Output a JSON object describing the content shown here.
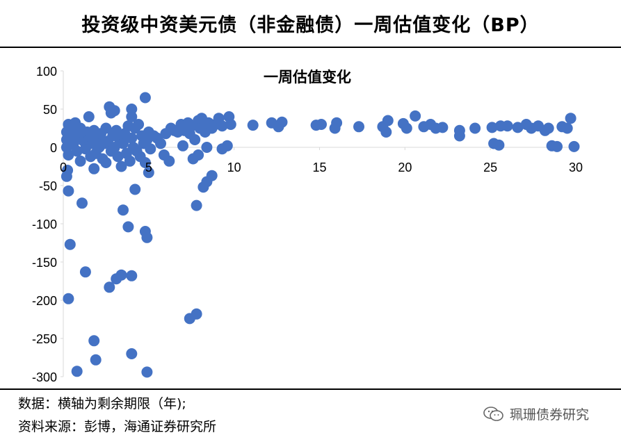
{
  "header": {
    "title": "投资级中资美元债（非金融债）一周估值变化（BP）"
  },
  "footer": {
    "data_note": "数据：横轴为剩余期限（年);",
    "source_note": "资料来源：彭博，海通证券研究所",
    "watermark": "珮珊债券研究",
    "watermark_icon": "wechat-icon"
  },
  "colors": {
    "marker": "#4472C4",
    "axis": "#d9d9d9",
    "text": "#000000"
  },
  "chart_data": {
    "type": "scatter",
    "title": "一周估值变化",
    "xlabel": "",
    "ylabel": "",
    "xlim": [
      0,
      30
    ],
    "ylim": [
      -300,
      100
    ],
    "xticks": [
      0,
      5,
      10,
      15,
      20,
      25,
      30
    ],
    "yticks": [
      100,
      50,
      0,
      -50,
      -100,
      -150,
      -200,
      -250,
      -300
    ],
    "grid": false,
    "legend": "none",
    "series": [
      {
        "points": [
          [
            0.2,
            -38
          ],
          [
            0.25,
            -30
          ],
          [
            0.3,
            -57
          ],
          [
            0.4,
            -127
          ],
          [
            0.3,
            -198
          ],
          [
            0.8,
            -293
          ],
          [
            1.1,
            -73
          ],
          [
            1.3,
            -163
          ],
          [
            1.8,
            -253
          ],
          [
            1.9,
            -278
          ],
          [
            2.7,
            -183
          ],
          [
            3.1,
            -172
          ],
          [
            3.4,
            -167
          ],
          [
            3.5,
            -82
          ],
          [
            3.8,
            -104
          ],
          [
            4.0,
            -168
          ],
          [
            4.0,
            -270
          ],
          [
            4.2,
            -55
          ],
          [
            4.8,
            -110
          ],
          [
            4.9,
            -118
          ],
          [
            4.9,
            -294
          ],
          [
            5.0,
            -33
          ],
          [
            7.4,
            -224
          ],
          [
            7.8,
            -218
          ],
          [
            7.8,
            -76
          ],
          [
            8.2,
            -52
          ],
          [
            8.4,
            -45
          ],
          [
            8.7,
            -37
          ],
          [
            7.6,
            -15
          ],
          [
            7.9,
            -10
          ],
          [
            2.7,
            53
          ],
          [
            2.8,
            45
          ],
          [
            3.0,
            48
          ],
          [
            4.0,
            50
          ],
          [
            4.0,
            40
          ],
          [
            4.8,
            65
          ],
          [
            1.5,
            40
          ],
          [
            0.2,
            20
          ],
          [
            0.2,
            10
          ],
          [
            0.2,
            0
          ],
          [
            0.3,
            -10
          ],
          [
            0.3,
            30
          ],
          [
            0.5,
            25
          ],
          [
            0.5,
            15
          ],
          [
            0.6,
            5
          ],
          [
            0.7,
            32
          ],
          [
            0.8,
            -5
          ],
          [
            0.9,
            15
          ],
          [
            1.0,
            25
          ],
          [
            1.0,
            -18
          ],
          [
            1.2,
            8
          ],
          [
            1.3,
            -2
          ],
          [
            1.4,
            20
          ],
          [
            1.5,
            10
          ],
          [
            1.6,
            -12
          ],
          [
            1.7,
            5
          ],
          [
            1.8,
            22
          ],
          [
            1.8,
            -28
          ],
          [
            1.9,
            -8
          ],
          [
            2.0,
            12
          ],
          [
            2.1,
            0
          ],
          [
            2.2,
            18
          ],
          [
            2.3,
            -15
          ],
          [
            2.4,
            5
          ],
          [
            2.5,
            25
          ],
          [
            2.5,
            -20
          ],
          [
            2.6,
            8
          ],
          [
            2.8,
            -5
          ],
          [
            2.9,
            15
          ],
          [
            3.0,
            0
          ],
          [
            3.1,
            22
          ],
          [
            3.2,
            -12
          ],
          [
            3.3,
            10
          ],
          [
            3.4,
            -25
          ],
          [
            3.5,
            5
          ],
          [
            3.6,
            18
          ],
          [
            3.7,
            -8
          ],
          [
            3.8,
            28
          ],
          [
            3.9,
            -18
          ],
          [
            4.0,
            12
          ],
          [
            4.1,
            0
          ],
          [
            4.2,
            25
          ],
          [
            4.3,
            -5
          ],
          [
            4.4,
            30
          ],
          [
            4.5,
            -12
          ],
          [
            4.6,
            15
          ],
          [
            4.7,
            5
          ],
          [
            4.8,
            -20
          ],
          [
            4.9,
            10
          ],
          [
            5.0,
            20
          ],
          [
            5.1,
            -2
          ],
          [
            5.3,
            15
          ],
          [
            5.5,
            12
          ],
          [
            5.7,
            5
          ],
          [
            5.9,
            -10
          ],
          [
            6.0,
            18
          ],
          [
            6.2,
            -18
          ],
          [
            6.3,
            25
          ],
          [
            6.5,
            22
          ],
          [
            6.7,
            20
          ],
          [
            6.9,
            30
          ],
          [
            7.0,
            2
          ],
          [
            7.1,
            22
          ],
          [
            7.3,
            32
          ],
          [
            7.4,
            18
          ],
          [
            7.5,
            28
          ],
          [
            7.7,
            10
          ],
          [
            7.9,
            35
          ],
          [
            8.0,
            25
          ],
          [
            8.1,
            38
          ],
          [
            8.3,
            20
          ],
          [
            8.4,
            0
          ],
          [
            8.5,
            32
          ],
          [
            8.7,
            25
          ],
          [
            8.9,
            30
          ],
          [
            9.1,
            38
          ],
          [
            9.3,
            28
          ],
          [
            9.3,
            -2
          ],
          [
            9.6,
            2
          ],
          [
            9.7,
            40
          ],
          [
            9.8,
            30
          ],
          [
            11.1,
            29
          ],
          [
            12.2,
            32
          ],
          [
            12.6,
            27
          ],
          [
            12.8,
            33
          ],
          [
            14.8,
            29
          ],
          [
            15.1,
            30
          ],
          [
            15.9,
            25
          ],
          [
            16.0,
            32
          ],
          [
            17.3,
            27
          ],
          [
            18.7,
            27
          ],
          [
            18.9,
            20
          ],
          [
            19.0,
            35
          ],
          [
            19.9,
            31
          ],
          [
            20.1,
            25
          ],
          [
            20.6,
            41
          ],
          [
            21.1,
            27
          ],
          [
            21.5,
            30
          ],
          [
            21.8,
            25
          ],
          [
            22.2,
            26
          ],
          [
            23.2,
            22
          ],
          [
            23.2,
            15
          ],
          [
            24.1,
            25
          ],
          [
            25.1,
            26
          ],
          [
            25.2,
            5
          ],
          [
            25.5,
            3
          ],
          [
            25.6,
            28
          ],
          [
            26.0,
            28
          ],
          [
            26.6,
            26
          ],
          [
            27.1,
            30
          ],
          [
            27.4,
            25
          ],
          [
            27.8,
            28
          ],
          [
            28.2,
            22
          ],
          [
            28.4,
            25
          ],
          [
            28.6,
            2
          ],
          [
            28.9,
            1
          ],
          [
            29.2,
            27
          ],
          [
            29.5,
            25
          ],
          [
            29.7,
            38
          ],
          [
            29.9,
            1
          ]
        ]
      }
    ]
  }
}
